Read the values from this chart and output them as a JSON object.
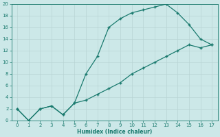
{
  "xlabel": "Humidex (Indice chaleur)",
  "line1_x": [
    0,
    1,
    2,
    3,
    4,
    5,
    6,
    7,
    8,
    9,
    10,
    11,
    12,
    13,
    14,
    15,
    16,
    17
  ],
  "line1_y": [
    2,
    0,
    2,
    2.5,
    1,
    3,
    8,
    11,
    16,
    17.5,
    18.5,
    19,
    19.5,
    20,
    18.5,
    16.5,
    14,
    13
  ],
  "line2_x": [
    0,
    1,
    2,
    3,
    4,
    5,
    6,
    7,
    8,
    9,
    10,
    11,
    12,
    13,
    14,
    15,
    16,
    17
  ],
  "line2_y": [
    2,
    0,
    2,
    2.5,
    1,
    3,
    3.5,
    4.5,
    5.5,
    6.5,
    8,
    9,
    10,
    11,
    12,
    13,
    12.5,
    13
  ],
  "line_color": "#1a7a6e",
  "bg_color": "#cce8e8",
  "grid_color": "#b8d4d4",
  "xlim": [
    -0.5,
    17.5
  ],
  "ylim": [
    0,
    20
  ],
  "xticks": [
    0,
    1,
    2,
    3,
    4,
    5,
    6,
    7,
    8,
    9,
    10,
    11,
    12,
    13,
    14,
    15,
    16,
    17
  ],
  "yticks": [
    0,
    2,
    4,
    6,
    8,
    10,
    12,
    14,
    16,
    18,
    20
  ]
}
